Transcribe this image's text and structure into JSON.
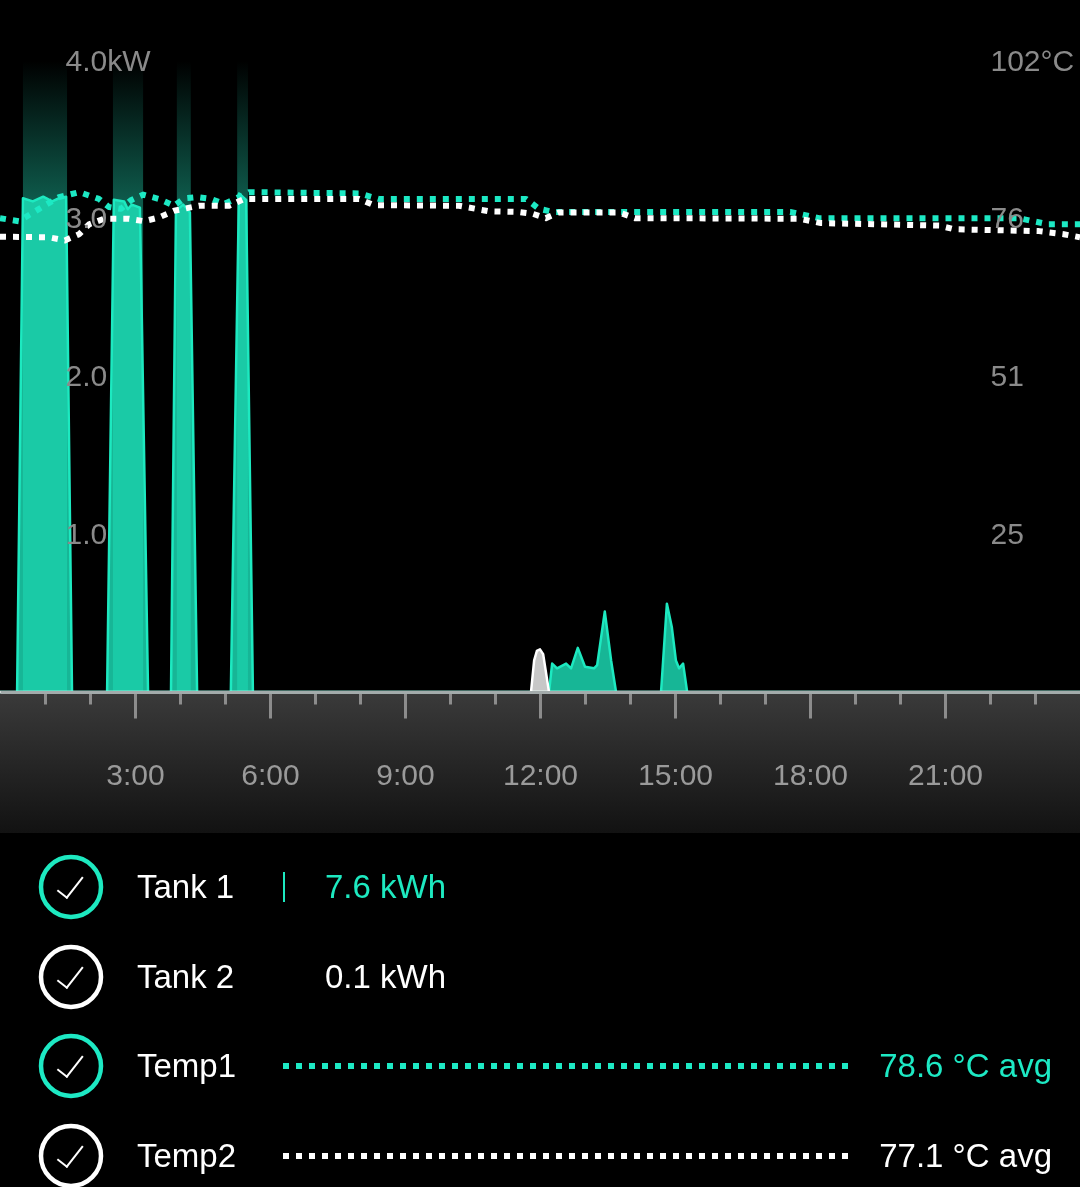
{
  "chart_data": {
    "type": "area",
    "xlim": [
      0,
      24
    ],
    "xticks": [
      {
        "value": 1,
        "label": null
      },
      {
        "value": 2,
        "label": null
      },
      {
        "value": 3,
        "label": "3:00"
      },
      {
        "value": 4,
        "label": null
      },
      {
        "value": 5,
        "label": null
      },
      {
        "value": 6,
        "label": "6:00"
      },
      {
        "value": 7,
        "label": null
      },
      {
        "value": 8,
        "label": null
      },
      {
        "value": 9,
        "label": "9:00"
      },
      {
        "value": 10,
        "label": null
      },
      {
        "value": 11,
        "label": null
      },
      {
        "value": 12,
        "label": "12:00"
      },
      {
        "value": 13,
        "label": null
      },
      {
        "value": 14,
        "label": null
      },
      {
        "value": 15,
        "label": "15:00"
      },
      {
        "value": 16,
        "label": null
      },
      {
        "value": 17,
        "label": null
      },
      {
        "value": 18,
        "label": "18:00"
      },
      {
        "value": 19,
        "label": null
      },
      {
        "value": 20,
        "label": null
      },
      {
        "value": 21,
        "label": "21:00"
      },
      {
        "value": 22,
        "label": null
      },
      {
        "value": 23,
        "label": null
      }
    ],
    "ylim": [
      0,
      4
    ],
    "yticks": [
      {
        "value": 4,
        "label": "4.0kW"
      },
      {
        "value": 3,
        "label": "3.0"
      },
      {
        "value": 2,
        "label": "2.0"
      },
      {
        "value": 1,
        "label": "1.0"
      }
    ],
    "y2lim": [
      0,
      102
    ],
    "y2ticks": [
      {
        "value": 102,
        "label": "102°C"
      },
      {
        "value": 76.5,
        "label": "76"
      },
      51,
      {
        "value": 25.5,
        "label": "25"
      }
    ],
    "grid": false,
    "legend": "bottom",
    "bands": [
      {
        "axis": "x",
        "from": 0.51,
        "to": 1.49,
        "color": "#0e5a4b"
      },
      {
        "axis": "x",
        "from": 2.51,
        "to": 3.18,
        "color": "#0e5a4b"
      },
      {
        "axis": "x",
        "from": 3.93,
        "to": 4.24,
        "color": "#0e5a4b"
      },
      {
        "axis": "x",
        "from": 5.27,
        "to": 5.51,
        "color": "#0e5a4b"
      }
    ],
    "annotations": [
      "7.6 kWh",
      "0.1 kWh",
      "78.6 °C avg",
      "77.1 °C avg"
    ],
    "series": [
      {
        "name": "Tank 1",
        "color": "#1de9c0",
        "x": [
          0,
          0.38,
          0.51,
          0.73,
          0.96,
          1.16,
          1.31,
          1.47,
          1.6,
          2.38,
          2.53,
          2.76,
          2.84,
          2.93,
          3.11,
          3.29,
          3.8,
          3.91,
          4.07,
          4.22,
          4.38,
          5.13,
          5.31,
          5.47,
          5.62,
          12.2,
          12.27,
          12.38,
          12.58,
          12.69,
          12.84,
          13.0,
          13.2,
          13.27,
          13.44,
          13.58,
          13.69,
          14.69,
          14.82,
          14.93,
          15.02,
          15.09,
          15.18,
          15.27,
          24
        ],
        "values": [
          0,
          0,
          3.13,
          3.11,
          3.14,
          3.11,
          3.13,
          3.14,
          0,
          0,
          3.12,
          3.11,
          3.06,
          3.09,
          3.07,
          0,
          0,
          3.05,
          3.09,
          3.04,
          0,
          0,
          3.16,
          3.12,
          0,
          0,
          0.18,
          0.15,
          0.18,
          0.15,
          0.28,
          0.16,
          0.15,
          0.17,
          0.51,
          0.2,
          0,
          0,
          0.56,
          0.41,
          0.2,
          0.15,
          0.18,
          0,
          0
        ]
      },
      {
        "name": "Tank 2",
        "color": "#ffffff",
        "x": [
          0,
          11.8,
          11.87,
          11.93,
          12.0,
          12.07,
          12.2,
          24
        ],
        "values": [
          0,
          0,
          0.2,
          0.26,
          0.27,
          0.24,
          0,
          0
        ]
      },
      {
        "name": "Temp1",
        "type": "line",
        "axis": "y2",
        "line_style": "dotted",
        "color": "#1de9c4",
        "x": [
          0,
          0.42,
          0.87,
          1.31,
          1.76,
          2.2,
          2.42,
          2.69,
          2.91,
          3.18,
          3.53,
          3.87,
          4.09,
          4.38,
          4.69,
          4.98,
          5.31,
          5.53,
          7.98,
          8.42,
          11.69,
          11.98,
          12.29,
          17.56,
          18.2,
          22.64,
          23.29,
          24
        ],
        "values": [
          76.6,
          76.1,
          78.1,
          80.0,
          80.8,
          79.7,
          78.4,
          78.1,
          79.5,
          80.4,
          79.7,
          78.6,
          79.8,
          80.0,
          79.7,
          78.9,
          80.0,
          80.8,
          80.6,
          79.7,
          79.7,
          78.1,
          77.6,
          77.6,
          76.6,
          76.6,
          75.6,
          75.6
        ]
      },
      {
        "name": "Temp2",
        "type": "line",
        "axis": "y2",
        "line_style": "dotted",
        "color": "#ffffff",
        "x": [
          0,
          1.09,
          1.44,
          1.76,
          1.98,
          2.31,
          2.87,
          3.2,
          3.53,
          3.87,
          4.42,
          5.09,
          5.42,
          7.98,
          8.31,
          10.2,
          10.87,
          11.53,
          11.84,
          12.13,
          12.42,
          13.76,
          14.11,
          17.76,
          18.24,
          20.87,
          21.2,
          23.09,
          23.64,
          24
        ],
        "values": [
          73.6,
          73.5,
          73.0,
          74.0,
          75.6,
          76.5,
          76.5,
          76.1,
          76.7,
          77.8,
          78.6,
          78.6,
          79.7,
          79.7,
          78.7,
          78.6,
          77.7,
          77.6,
          77.3,
          76.6,
          77.5,
          77.5,
          76.6,
          76.5,
          75.8,
          75.4,
          74.8,
          74.5,
          74.0,
          73.5
        ]
      }
    ]
  }
}
